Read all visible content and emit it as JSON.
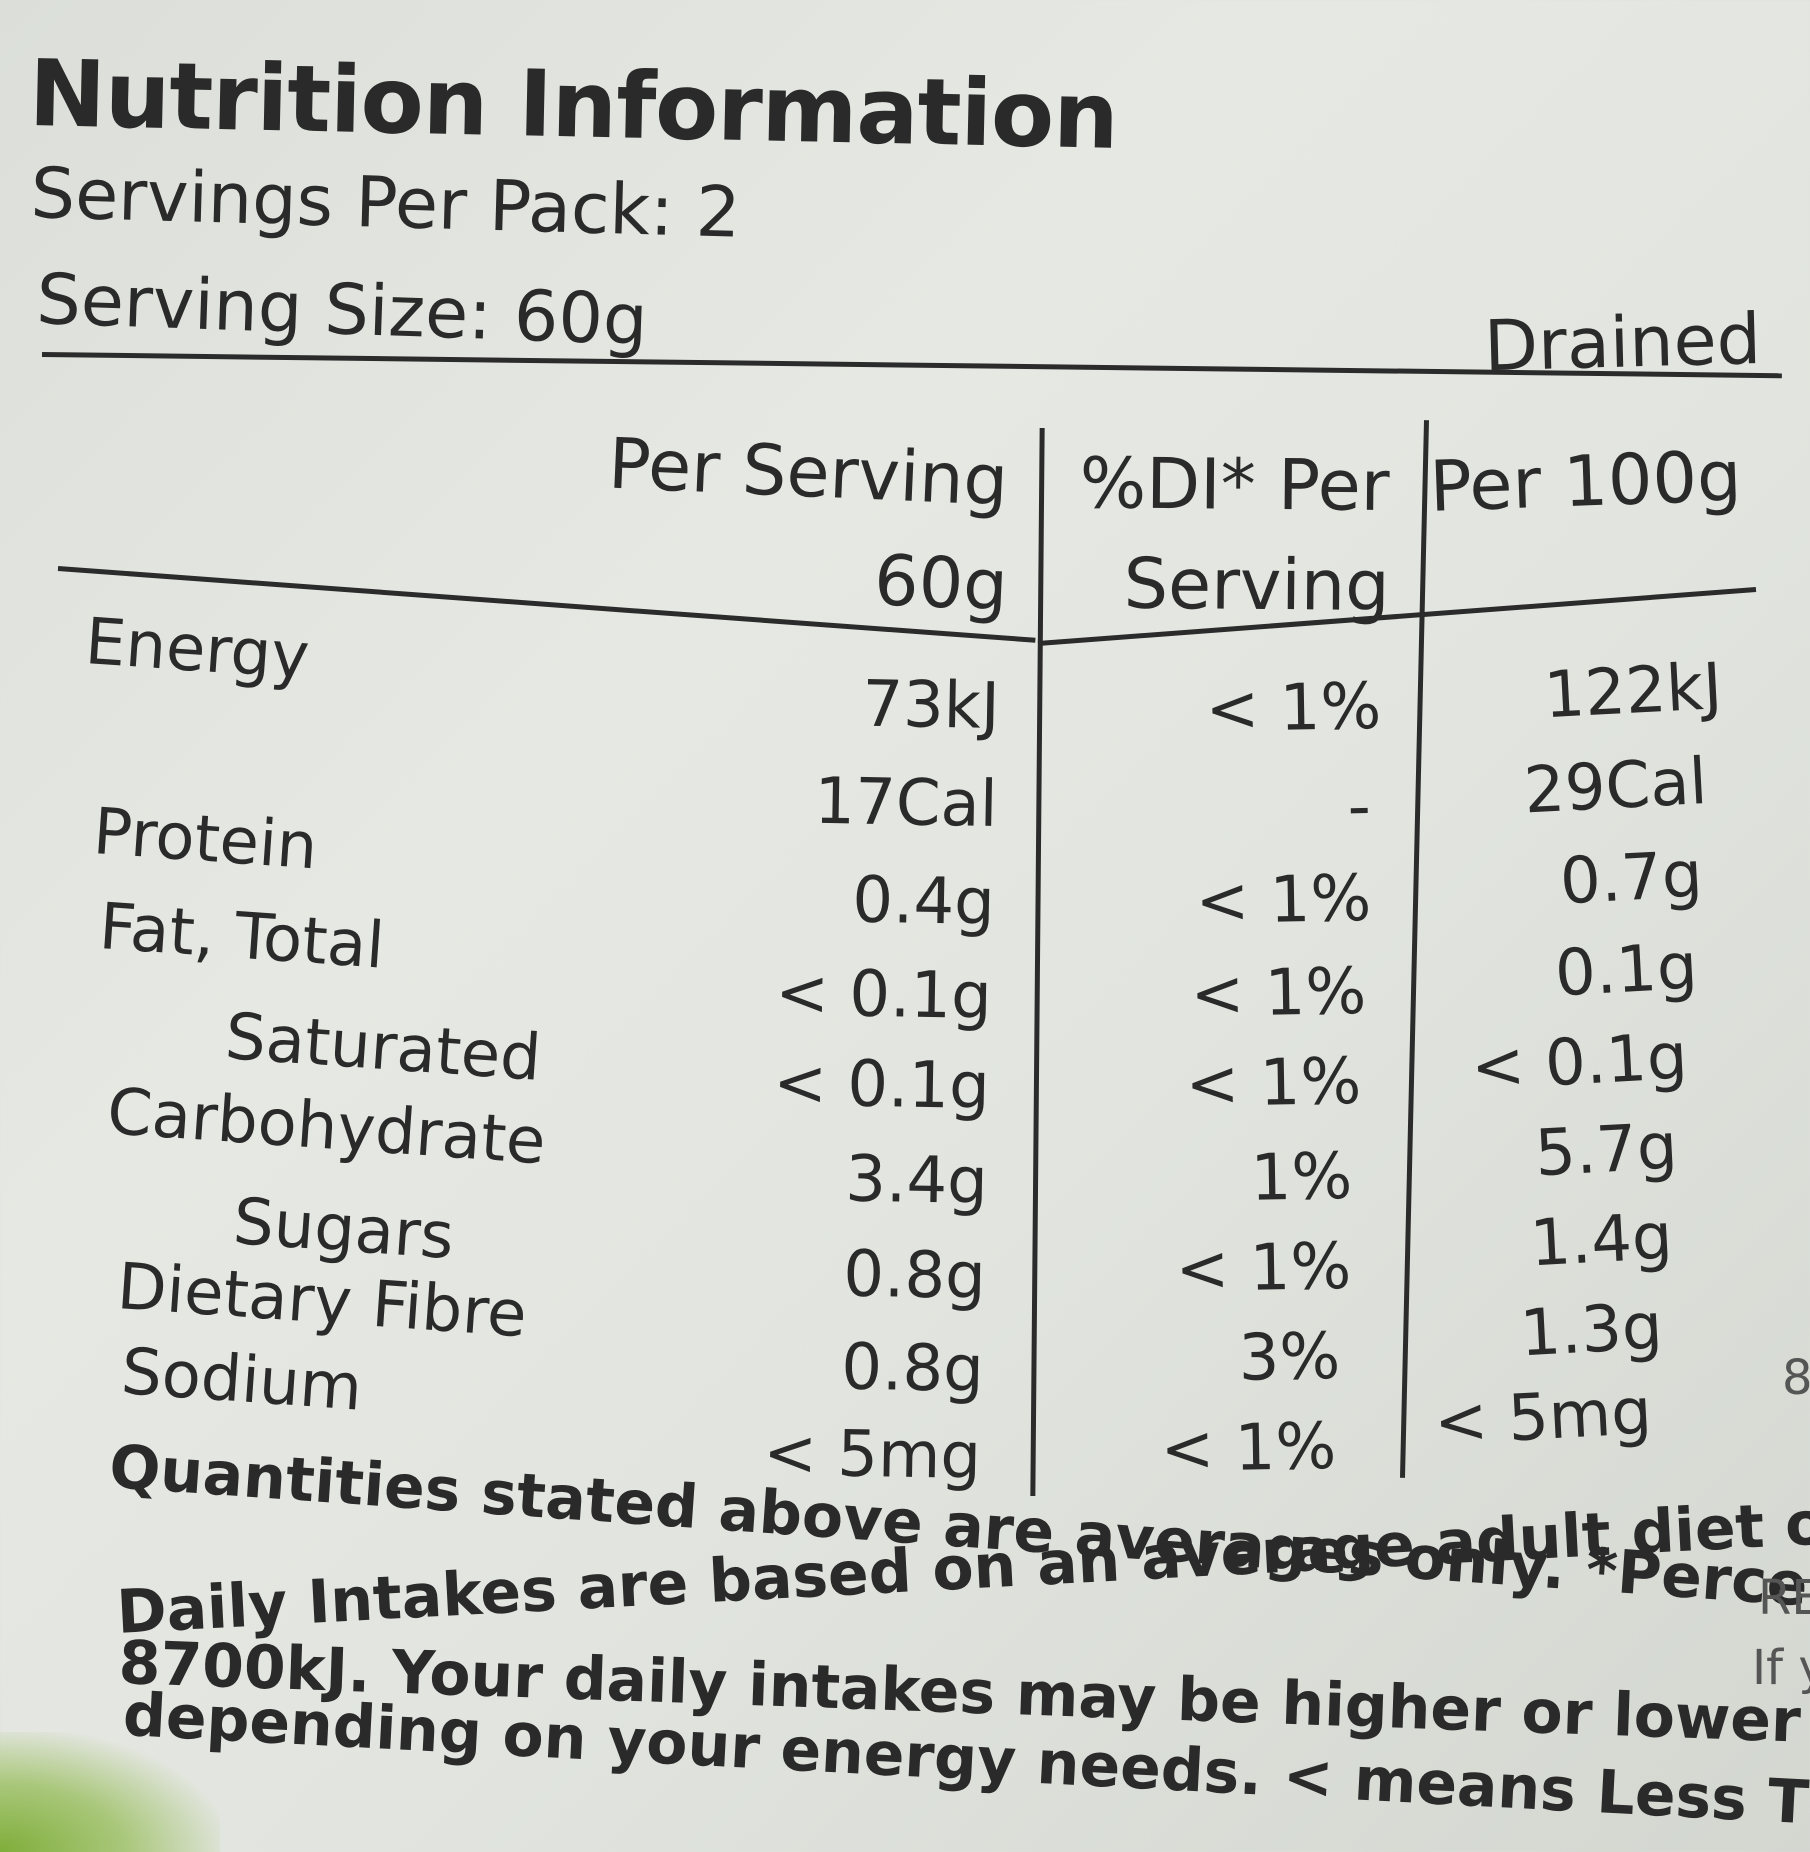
{
  "header": {
    "title": "Nutrition Information",
    "servings_per_pack": "Servings Per Pack: 2",
    "serving_size": "Serving Size: 60g",
    "drained": "Drained"
  },
  "columns": {
    "per_serving_line1": "Per Serving",
    "per_serving_line2": "60g",
    "di_line1": "%DI* Per",
    "di_line2": "Serving",
    "per_100g": "Per 100g"
  },
  "rows": [
    {
      "label": "Energy",
      "per_serving": "73kJ",
      "di": "< 1%",
      "per_100g": "122kJ"
    },
    {
      "label": "",
      "per_serving": "17Cal",
      "di": "-",
      "per_100g": "29Cal"
    },
    {
      "label": "Protein",
      "per_serving": "0.4g",
      "di": "< 1%",
      "per_100g": "0.7g"
    },
    {
      "label": "Fat, Total",
      "per_serving": "< 0.1g",
      "di": "< 1%",
      "per_100g": "0.1g"
    },
    {
      "label": "Saturated",
      "per_serving": "< 0.1g",
      "di": "< 1%",
      "per_100g": "< 0.1g"
    },
    {
      "label": "Carbohydrate",
      "per_serving": "3.4g",
      "di": "1%",
      "per_100g": "5.7g"
    },
    {
      "label": "Sugars",
      "per_serving": "0.8g",
      "di": "< 1%",
      "per_100g": "1.4g"
    },
    {
      "label": "Dietary Fibre",
      "per_serving": "0.8g",
      "di": "3%",
      "per_100g": "1.3g"
    },
    {
      "label": "Sodium",
      "per_serving": "< 5mg",
      "di": "< 1%",
      "per_100g": "< 5mg"
    }
  ],
  "footnote": [
    "Quantities stated above are averages only. *Percentage",
    "Daily Intakes are based on an average adult diet of",
    "8700kJ. Your daily intakes may be higher or lower",
    "depending on your energy needs. < means Less Than."
  ],
  "edge_text": [
    "8",
    "RE",
    "If y"
  ]
}
